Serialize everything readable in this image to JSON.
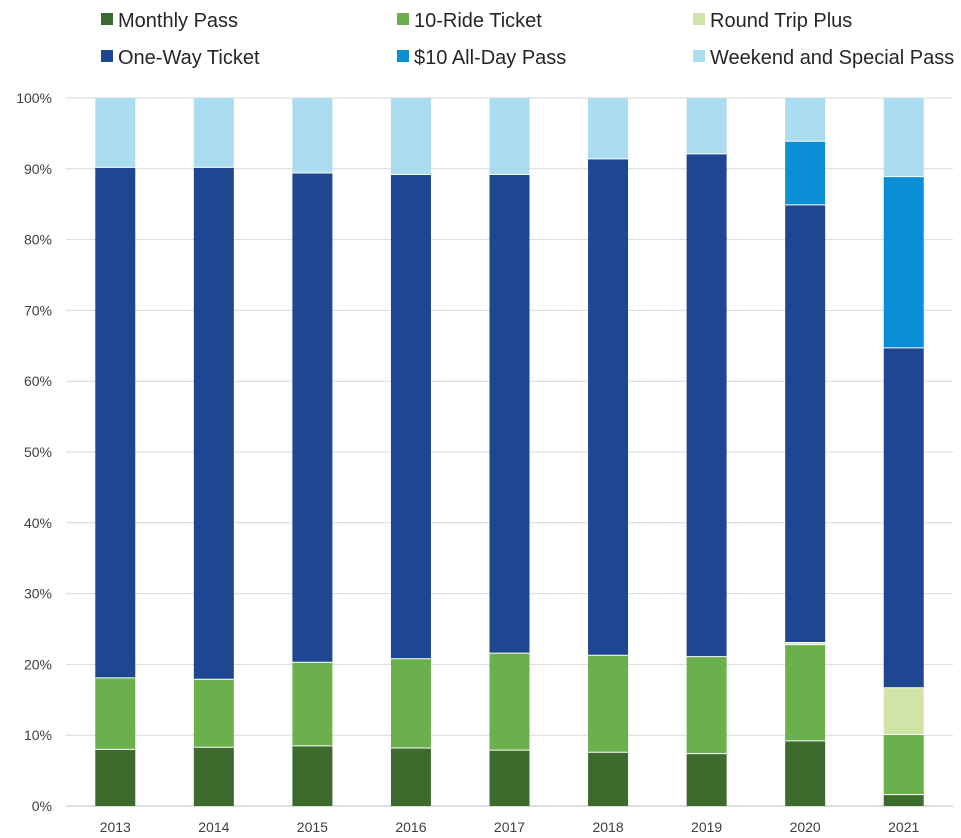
{
  "chart_data": {
    "type": "bar",
    "stacked": true,
    "normalized": true,
    "title": "",
    "xlabel": "",
    "ylabel": "",
    "ylim": [
      0,
      100
    ],
    "y_ticks": [
      "0%",
      "10%",
      "20%",
      "30%",
      "40%",
      "50%",
      "60%",
      "70%",
      "80%",
      "90%",
      "100%"
    ],
    "grid": true,
    "legend_position": "top",
    "categories": [
      "2013",
      "2014",
      "2015",
      "2016",
      "2017",
      "2018",
      "2019",
      "2020",
      "2021"
    ],
    "series": [
      {
        "name": "Monthly Pass",
        "color": "#3d6b2e",
        "values": [
          8.0,
          8.3,
          8.5,
          8.2,
          7.9,
          7.6,
          7.4,
          9.2,
          1.6
        ]
      },
      {
        "name": "10-Ride Ticket",
        "color": "#6ab04c",
        "values": [
          10.1,
          9.6,
          11.8,
          12.6,
          13.7,
          13.7,
          13.7,
          13.6,
          8.5
        ]
      },
      {
        "name": "Round Trip Plus",
        "color": "#d0e4a8",
        "values": [
          0,
          0,
          0,
          0,
          0,
          0,
          0,
          0.3,
          6.6
        ]
      },
      {
        "name": "One-Way Ticket",
        "color": "#1f4690",
        "values": [
          72.1,
          72.3,
          69.1,
          68.4,
          67.6,
          70.1,
          71.0,
          61.8,
          48.0
        ]
      },
      {
        "name": "$10 All-Day Pass",
        "color": "#0a8fd6",
        "values": [
          0,
          0,
          0,
          0,
          0,
          0,
          0,
          9.0,
          24.2
        ]
      },
      {
        "name": "Weekend and Special Pass",
        "color": "#abdcef",
        "values": [
          9.8,
          9.8,
          10.6,
          10.8,
          10.8,
          8.6,
          7.9,
          6.1,
          11.1
        ]
      }
    ]
  }
}
